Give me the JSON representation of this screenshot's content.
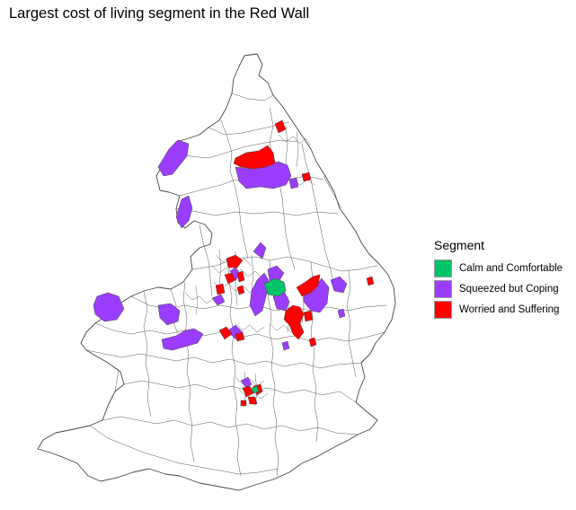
{
  "title": "Largest cost of living segment in the Red Wall",
  "legend": {
    "title": "Segment",
    "items": [
      {
        "label": "Calm and Comfortable",
        "color": "#00c36a"
      },
      {
        "label": "Squeezed but Coping",
        "color": "#9b3dff"
      },
      {
        "label": "Worried and Suffering",
        "color": "#ff0000"
      }
    ]
  },
  "colors": {
    "background": "#ffffff",
    "outline": "#444444",
    "land": "#ffffff"
  }
}
